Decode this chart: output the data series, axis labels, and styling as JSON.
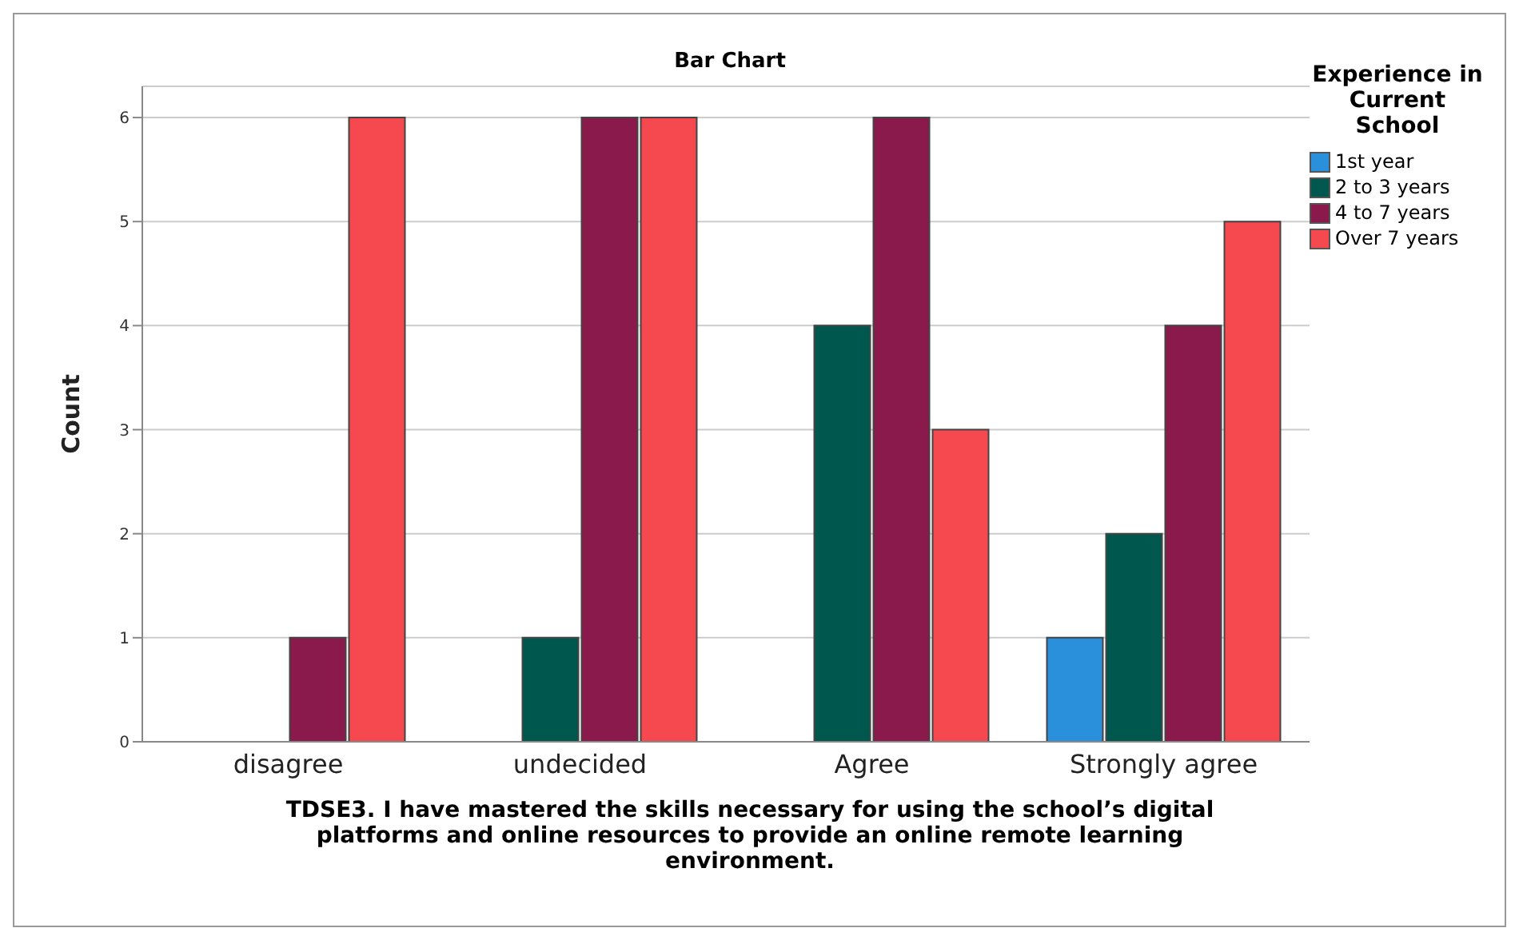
{
  "chart_data": {
    "type": "bar",
    "title": "Bar Chart",
    "xlabel": "TDSE3. I have mastered the skills necessary for using the school’s digital platforms and online resources to provide an online remote learning environment.",
    "ylabel": "Count",
    "legend_title": "Experience in Current School",
    "categories": [
      "disagree",
      "undecided",
      "Agree",
      "Strongly agree"
    ],
    "series": [
      {
        "name": "1st year",
        "color": "#2a90dc",
        "values": [
          null,
          null,
          null,
          1
        ]
      },
      {
        "name": "2 to 3 years",
        "color": "#00574e",
        "values": [
          null,
          1,
          4,
          2
        ]
      },
      {
        "name": "4 to 7 years",
        "color": "#8a1a4b",
        "values": [
          1,
          6,
          6,
          4
        ]
      },
      {
        "name": "Over 7 years",
        "color": "#f5484f",
        "values": [
          6,
          6,
          3,
          5
        ]
      }
    ],
    "ylim": [
      0,
      6.3
    ],
    "yticks": [
      0,
      1,
      2,
      3,
      4,
      5,
      6
    ],
    "grid": "y",
    "legend": "top right"
  }
}
